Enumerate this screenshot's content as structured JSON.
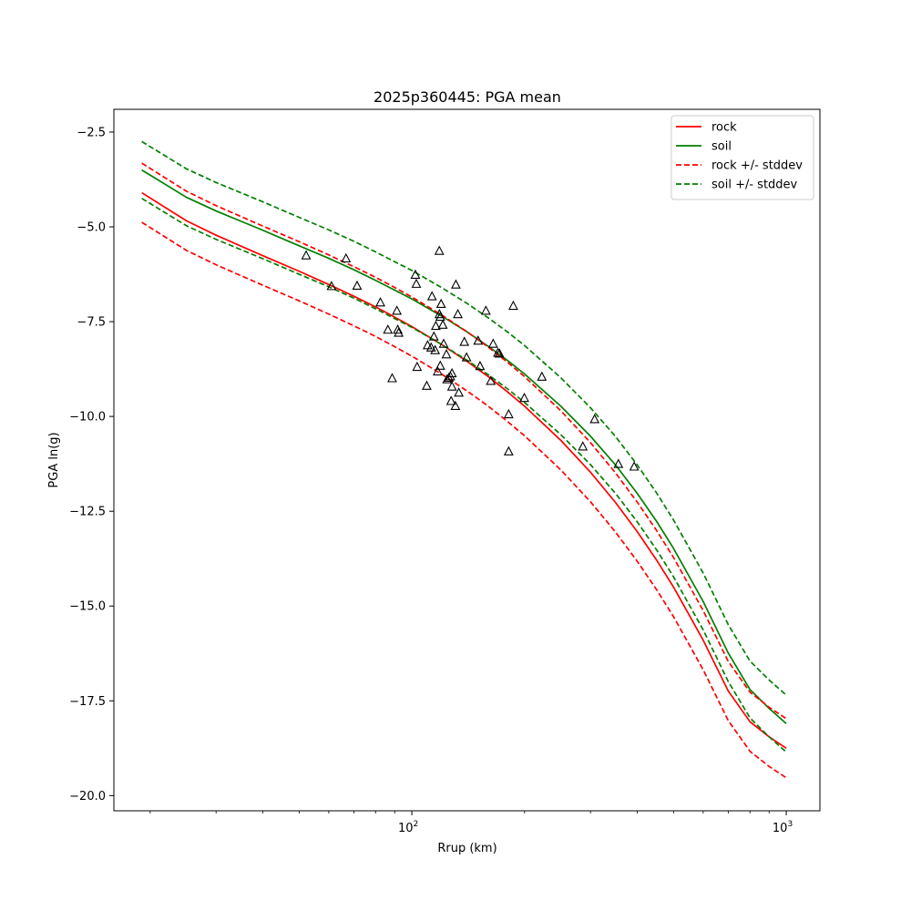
{
  "chart_data": {
    "type": "line",
    "title": "2025p360445: PGA mean",
    "xlabel": "Rrup (km)",
    "ylabel": "PGA ln(g)",
    "xscale": "log",
    "xlim": [
      16,
      1230
    ],
    "ylim": [
      -20.4,
      -1.9
    ],
    "xticks": [
      {
        "value": 100,
        "label": "10",
        "exp": "2"
      },
      {
        "value": 1000,
        "label": "10",
        "exp": "3"
      }
    ],
    "xminorticks": [
      20,
      30,
      40,
      50,
      60,
      70,
      80,
      90,
      200,
      300,
      400,
      500,
      600,
      700,
      800,
      900
    ],
    "yticks": [
      {
        "value": -2.5,
        "label": "−2.5"
      },
      {
        "value": -5.0,
        "label": "−5.0"
      },
      {
        "value": -7.5,
        "label": "−7.5"
      },
      {
        "value": -10.0,
        "label": "−10.0"
      },
      {
        "value": -12.5,
        "label": "−12.5"
      },
      {
        "value": -15.0,
        "label": "−15.0"
      },
      {
        "value": -17.5,
        "label": "−17.5"
      },
      {
        "value": -20.0,
        "label": "−20.0"
      }
    ],
    "grid": false,
    "legend_position": "top-right",
    "series": [
      {
        "name": "rock",
        "color": "#ff0000",
        "dash": "solid",
        "x": [
          19,
          25,
          30,
          40,
          50,
          60,
          70,
          80,
          90,
          100,
          120,
          140,
          160,
          180,
          200,
          250,
          300,
          350,
          400,
          450,
          500,
          600,
          700,
          800,
          900,
          1000
        ],
        "y": [
          -4.1,
          -4.84,
          -5.22,
          -5.76,
          -6.17,
          -6.52,
          -6.83,
          -7.11,
          -7.38,
          -7.63,
          -8.1,
          -8.54,
          -8.95,
          -9.35,
          -9.73,
          -10.63,
          -11.47,
          -12.27,
          -13.04,
          -13.78,
          -14.5,
          -15.9,
          -17.24,
          -18.05,
          -18.45,
          -18.75
        ]
      },
      {
        "name": "soil",
        "color": "#008000",
        "dash": "solid",
        "x": [
          19,
          25,
          30,
          40,
          50,
          60,
          70,
          80,
          90,
          100,
          120,
          140,
          160,
          180,
          200,
          250,
          300,
          350,
          400,
          450,
          500,
          600,
          700,
          800,
          900,
          1000
        ],
        "y": [
          -3.5,
          -4.22,
          -4.58,
          -5.09,
          -5.5,
          -5.83,
          -6.13,
          -6.41,
          -6.67,
          -6.9,
          -7.35,
          -7.76,
          -8.15,
          -8.52,
          -8.88,
          -9.73,
          -10.52,
          -11.28,
          -12.03,
          -12.76,
          -13.48,
          -14.88,
          -16.24,
          -17.2,
          -17.7,
          -18.1
        ]
      },
      {
        "name": "rock +/- stddev",
        "color": "#ff0000",
        "dash": "dashed",
        "x": [
          19,
          25,
          30,
          40,
          50,
          60,
          70,
          80,
          90,
          100,
          120,
          140,
          160,
          180,
          200,
          250,
          300,
          350,
          400,
          450,
          500,
          600,
          700,
          800,
          900,
          1000
        ],
        "y": [
          -3.32,
          -4.06,
          -4.44,
          -4.98,
          -5.39,
          -5.74,
          -6.05,
          -6.33,
          -6.6,
          -6.85,
          -7.32,
          -7.76,
          -8.17,
          -8.57,
          -8.95,
          -9.85,
          -10.69,
          -11.49,
          -12.26,
          -13.0,
          -13.72,
          -15.12,
          -16.46,
          -17.27,
          -17.67,
          -17.97
        ]
      },
      {
        "name": "",
        "color": "#ff0000",
        "dash": "dashed",
        "x": [
          19,
          25,
          30,
          40,
          50,
          60,
          70,
          80,
          90,
          100,
          120,
          140,
          160,
          180,
          200,
          250,
          300,
          350,
          400,
          450,
          500,
          600,
          700,
          800,
          900,
          1000
        ],
        "y": [
          -4.88,
          -5.62,
          -6.0,
          -6.54,
          -6.95,
          -7.3,
          -7.61,
          -7.89,
          -8.16,
          -8.41,
          -8.88,
          -9.32,
          -9.73,
          -10.13,
          -10.51,
          -11.41,
          -12.25,
          -13.05,
          -13.82,
          -14.56,
          -15.28,
          -16.68,
          -18.02,
          -18.83,
          -19.23,
          -19.53
        ]
      },
      {
        "name": "soil +/- stddev",
        "color": "#008000",
        "dash": "dashed",
        "x": [
          19,
          25,
          30,
          40,
          50,
          60,
          70,
          80,
          90,
          100,
          120,
          140,
          160,
          180,
          200,
          250,
          300,
          350,
          400,
          450,
          500,
          600,
          700,
          800,
          900,
          1000
        ],
        "y": [
          -2.75,
          -3.47,
          -3.83,
          -4.34,
          -4.75,
          -5.08,
          -5.38,
          -5.66,
          -5.92,
          -6.15,
          -6.6,
          -7.01,
          -7.4,
          -7.77,
          -8.13,
          -8.98,
          -9.77,
          -10.53,
          -11.28,
          -12.01,
          -12.73,
          -14.13,
          -15.49,
          -16.45,
          -16.95,
          -17.35
        ]
      },
      {
        "name": "",
        "color": "#008000",
        "dash": "dashed",
        "x": [
          19,
          25,
          30,
          40,
          50,
          60,
          70,
          80,
          90,
          100,
          120,
          140,
          160,
          180,
          200,
          250,
          300,
          350,
          400,
          450,
          500,
          600,
          700,
          800,
          900,
          1000
        ],
        "y": [
          -4.25,
          -4.97,
          -5.33,
          -5.84,
          -6.25,
          -6.58,
          -6.88,
          -7.16,
          -7.42,
          -7.65,
          -8.1,
          -8.51,
          -8.9,
          -9.27,
          -9.63,
          -10.48,
          -11.27,
          -12.03,
          -12.78,
          -13.51,
          -14.23,
          -15.63,
          -16.99,
          -17.95,
          -18.45,
          -18.85
        ]
      }
    ],
    "observations": {
      "marker": "open-triangle",
      "color": "#000000",
      "points": [
        [
          52.2,
          -5.76
        ],
        [
          61.0,
          -6.57
        ],
        [
          66.7,
          -5.84
        ],
        [
          71.4,
          -6.56
        ],
        [
          82.4,
          -7.0
        ],
        [
          86.3,
          -7.72
        ],
        [
          88.6,
          -9.0
        ],
        [
          91.2,
          -7.22
        ],
        [
          91.7,
          -7.72
        ],
        [
          92.2,
          -7.8
        ],
        [
          102.2,
          -6.27
        ],
        [
          102.8,
          -6.51
        ],
        [
          103.3,
          -8.7
        ],
        [
          109.6,
          -9.2
        ],
        [
          110.2,
          -8.13
        ],
        [
          112.6,
          -8.19
        ],
        [
          113.2,
          -6.84
        ],
        [
          114.5,
          -7.9
        ],
        [
          115.9,
          -7.62
        ],
        [
          115.4,
          -8.26
        ],
        [
          117.2,
          -8.82
        ],
        [
          118.4,
          -5.64
        ],
        [
          118.5,
          -7.31
        ],
        [
          119.1,
          -7.38
        ],
        [
          119.7,
          -7.04
        ],
        [
          119.1,
          -8.67
        ],
        [
          121.0,
          -7.59
        ],
        [
          121.6,
          -8.09
        ],
        [
          123.7,
          -8.37
        ],
        [
          124.2,
          -9.03
        ],
        [
          125.6,
          -8.99
        ],
        [
          126.7,
          -8.95
        ],
        [
          127.3,
          -9.6
        ],
        [
          128.0,
          -9.22
        ],
        [
          128.0,
          -8.87
        ],
        [
          130.7,
          -9.73
        ],
        [
          131.1,
          -6.53
        ],
        [
          132.7,
          -7.31
        ],
        [
          133.5,
          -9.38
        ],
        [
          138.1,
          -8.04
        ],
        [
          140.0,
          -8.45
        ],
        [
          150.3,
          -8.01
        ],
        [
          152.1,
          -8.68
        ],
        [
          157.7,
          -7.22
        ],
        [
          162.5,
          -9.07
        ],
        [
          164.9,
          -8.09
        ],
        [
          169.8,
          -8.33
        ],
        [
          171.4,
          -8.35
        ],
        [
          181.4,
          -9.95
        ],
        [
          181.4,
          -10.93
        ],
        [
          186.6,
          -7.09
        ],
        [
          199.7,
          -9.52
        ],
        [
          222.5,
          -8.96
        ],
        [
          286.2,
          -10.8
        ],
        [
          307.7,
          -10.08
        ],
        [
          356.2,
          -11.26
        ],
        [
          392.5,
          -11.33
        ]
      ]
    }
  }
}
